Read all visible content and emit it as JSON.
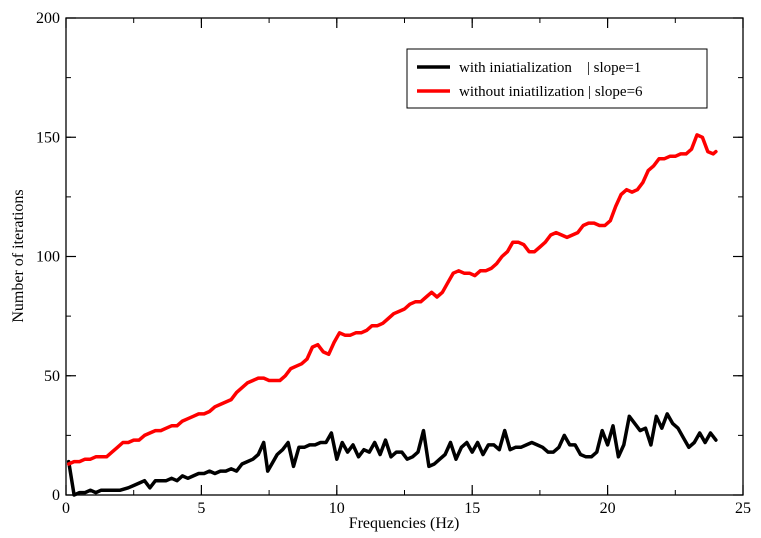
{
  "chart_data": {
    "type": "line",
    "title": "",
    "xlabel": "Frequencies (Hz)",
    "ylabel": "Number of iterations",
    "xlim": [
      0,
      25
    ],
    "ylim": [
      0,
      200
    ],
    "xticks": [
      0,
      5,
      10,
      15,
      20,
      25
    ],
    "yticks": [
      0,
      50,
      100,
      150,
      200
    ],
    "grid": false,
    "legend_position": "top-right",
    "series": [
      {
        "name": "with iniatialization    | slope=1",
        "color": "#000000",
        "points": [
          [
            0.1,
            14
          ],
          [
            0.3,
            0
          ],
          [
            0.5,
            1
          ],
          [
            0.7,
            1
          ],
          [
            0.9,
            2
          ],
          [
            1.1,
            1
          ],
          [
            1.3,
            2
          ],
          [
            1.5,
            2
          ],
          [
            1.7,
            2
          ],
          [
            2.0,
            2
          ],
          [
            2.3,
            3
          ],
          [
            2.5,
            4
          ],
          [
            2.7,
            5
          ],
          [
            2.9,
            6
          ],
          [
            3.1,
            3
          ],
          [
            3.3,
            6
          ],
          [
            3.5,
            6
          ],
          [
            3.7,
            6
          ],
          [
            3.9,
            7
          ],
          [
            4.1,
            6
          ],
          [
            4.3,
            8
          ],
          [
            4.5,
            7
          ],
          [
            4.7,
            8
          ],
          [
            4.9,
            9
          ],
          [
            5.1,
            9
          ],
          [
            5.3,
            10
          ],
          [
            5.5,
            9
          ],
          [
            5.7,
            10
          ],
          [
            5.9,
            10
          ],
          [
            6.1,
            11
          ],
          [
            6.3,
            10
          ],
          [
            6.5,
            13
          ],
          [
            6.7,
            14
          ],
          [
            6.9,
            15
          ],
          [
            7.1,
            17
          ],
          [
            7.3,
            22
          ],
          [
            7.45,
            10
          ],
          [
            7.6,
            13
          ],
          [
            7.8,
            17
          ],
          [
            8.0,
            19
          ],
          [
            8.2,
            22
          ],
          [
            8.4,
            12
          ],
          [
            8.6,
            20
          ],
          [
            8.8,
            20
          ],
          [
            9.0,
            21
          ],
          [
            9.2,
            21
          ],
          [
            9.4,
            22
          ],
          [
            9.6,
            22
          ],
          [
            9.8,
            26
          ],
          [
            10.0,
            15
          ],
          [
            10.2,
            22
          ],
          [
            10.4,
            18
          ],
          [
            10.6,
            21
          ],
          [
            10.8,
            16
          ],
          [
            11.0,
            19
          ],
          [
            11.2,
            18
          ],
          [
            11.4,
            22
          ],
          [
            11.6,
            17
          ],
          [
            11.8,
            23
          ],
          [
            12.0,
            16
          ],
          [
            12.2,
            18
          ],
          [
            12.4,
            18
          ],
          [
            12.6,
            15
          ],
          [
            12.8,
            16
          ],
          [
            13.0,
            18
          ],
          [
            13.2,
            27
          ],
          [
            13.4,
            12
          ],
          [
            13.6,
            13
          ],
          [
            13.8,
            15
          ],
          [
            14.0,
            17
          ],
          [
            14.2,
            22
          ],
          [
            14.4,
            15
          ],
          [
            14.6,
            20
          ],
          [
            14.8,
            22
          ],
          [
            15.0,
            18
          ],
          [
            15.2,
            22
          ],
          [
            15.4,
            17
          ],
          [
            15.6,
            21
          ],
          [
            15.8,
            21
          ],
          [
            16.0,
            19
          ],
          [
            16.2,
            27
          ],
          [
            16.4,
            19
          ],
          [
            16.6,
            20
          ],
          [
            16.8,
            20
          ],
          [
            17.0,
            21
          ],
          [
            17.2,
            22
          ],
          [
            17.4,
            21
          ],
          [
            17.6,
            20
          ],
          [
            17.8,
            18
          ],
          [
            18.0,
            18
          ],
          [
            18.2,
            20
          ],
          [
            18.4,
            25
          ],
          [
            18.6,
            21
          ],
          [
            18.8,
            21
          ],
          [
            19.0,
            17
          ],
          [
            19.2,
            16
          ],
          [
            19.4,
            16
          ],
          [
            19.6,
            18
          ],
          [
            19.8,
            27
          ],
          [
            20.0,
            21
          ],
          [
            20.2,
            29
          ],
          [
            20.4,
            16
          ],
          [
            20.6,
            21
          ],
          [
            20.8,
            33
          ],
          [
            21.0,
            30
          ],
          [
            21.2,
            27
          ],
          [
            21.4,
            28
          ],
          [
            21.6,
            21
          ],
          [
            21.8,
            33
          ],
          [
            22.0,
            28
          ],
          [
            22.2,
            34
          ],
          [
            22.4,
            30
          ],
          [
            22.6,
            28
          ],
          [
            22.8,
            24
          ],
          [
            23.0,
            20
          ],
          [
            23.2,
            22
          ],
          [
            23.4,
            26
          ],
          [
            23.6,
            22
          ],
          [
            23.8,
            26
          ],
          [
            24.0,
            23
          ]
        ]
      },
      {
        "name": "without iniatilization | slope=6",
        "color": "#ff0000",
        "points": [
          [
            0.1,
            13
          ],
          [
            0.3,
            14
          ],
          [
            0.5,
            14
          ],
          [
            0.7,
            15
          ],
          [
            0.9,
            15
          ],
          [
            1.1,
            16
          ],
          [
            1.3,
            16
          ],
          [
            1.5,
            16
          ],
          [
            1.7,
            18
          ],
          [
            1.9,
            20
          ],
          [
            2.1,
            22
          ],
          [
            2.3,
            22
          ],
          [
            2.5,
            23
          ],
          [
            2.7,
            23
          ],
          [
            2.9,
            25
          ],
          [
            3.1,
            26
          ],
          [
            3.3,
            27
          ],
          [
            3.5,
            27
          ],
          [
            3.7,
            28
          ],
          [
            3.9,
            29
          ],
          [
            4.1,
            29
          ],
          [
            4.3,
            31
          ],
          [
            4.5,
            32
          ],
          [
            4.7,
            33
          ],
          [
            4.9,
            34
          ],
          [
            5.1,
            34
          ],
          [
            5.3,
            35
          ],
          [
            5.5,
            37
          ],
          [
            5.7,
            38
          ],
          [
            5.9,
            39
          ],
          [
            6.1,
            40
          ],
          [
            6.3,
            43
          ],
          [
            6.5,
            45
          ],
          [
            6.7,
            47
          ],
          [
            6.9,
            48
          ],
          [
            7.1,
            49
          ],
          [
            7.3,
            49
          ],
          [
            7.5,
            48
          ],
          [
            7.7,
            48
          ],
          [
            7.9,
            48
          ],
          [
            8.1,
            50
          ],
          [
            8.3,
            53
          ],
          [
            8.5,
            54
          ],
          [
            8.7,
            55
          ],
          [
            8.9,
            57
          ],
          [
            9.1,
            62
          ],
          [
            9.3,
            63
          ],
          [
            9.5,
            60
          ],
          [
            9.7,
            59
          ],
          [
            9.9,
            64
          ],
          [
            10.1,
            68
          ],
          [
            10.3,
            67
          ],
          [
            10.5,
            67
          ],
          [
            10.7,
            68
          ],
          [
            10.9,
            68
          ],
          [
            11.1,
            69
          ],
          [
            11.3,
            71
          ],
          [
            11.5,
            71
          ],
          [
            11.7,
            72
          ],
          [
            11.9,
            74
          ],
          [
            12.1,
            76
          ],
          [
            12.3,
            77
          ],
          [
            12.5,
            78
          ],
          [
            12.7,
            80
          ],
          [
            12.9,
            81
          ],
          [
            13.1,
            81
          ],
          [
            13.3,
            83
          ],
          [
            13.5,
            85
          ],
          [
            13.7,
            83
          ],
          [
            13.9,
            85
          ],
          [
            14.1,
            89
          ],
          [
            14.3,
            93
          ],
          [
            14.5,
            94
          ],
          [
            14.7,
            93
          ],
          [
            14.9,
            93
          ],
          [
            15.1,
            92
          ],
          [
            15.3,
            94
          ],
          [
            15.5,
            94
          ],
          [
            15.7,
            95
          ],
          [
            15.9,
            97
          ],
          [
            16.1,
            100
          ],
          [
            16.3,
            102
          ],
          [
            16.5,
            106
          ],
          [
            16.7,
            106
          ],
          [
            16.9,
            105
          ],
          [
            17.1,
            102
          ],
          [
            17.3,
            102
          ],
          [
            17.5,
            104
          ],
          [
            17.7,
            106
          ],
          [
            17.9,
            109
          ],
          [
            18.1,
            110
          ],
          [
            18.3,
            109
          ],
          [
            18.5,
            108
          ],
          [
            18.7,
            109
          ],
          [
            18.9,
            110
          ],
          [
            19.1,
            113
          ],
          [
            19.3,
            114
          ],
          [
            19.5,
            114
          ],
          [
            19.7,
            113
          ],
          [
            19.9,
            113
          ],
          [
            20.1,
            115
          ],
          [
            20.3,
            121
          ],
          [
            20.5,
            126
          ],
          [
            20.7,
            128
          ],
          [
            20.9,
            127
          ],
          [
            21.1,
            128
          ],
          [
            21.3,
            131
          ],
          [
            21.5,
            136
          ],
          [
            21.7,
            138
          ],
          [
            21.9,
            141
          ],
          [
            22.1,
            141
          ],
          [
            22.3,
            142
          ],
          [
            22.5,
            142
          ],
          [
            22.7,
            143
          ],
          [
            22.9,
            143
          ],
          [
            23.1,
            145
          ],
          [
            23.3,
            151
          ],
          [
            23.5,
            150
          ],
          [
            23.7,
            144
          ],
          [
            23.9,
            143
          ],
          [
            24.0,
            144
          ]
        ]
      }
    ]
  }
}
